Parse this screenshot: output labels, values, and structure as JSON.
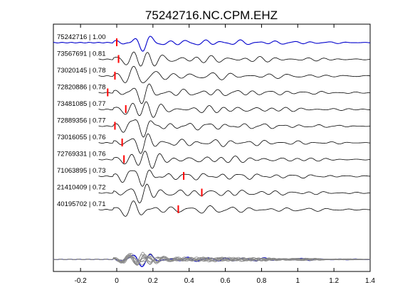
{
  "chart_data": {
    "type": "line",
    "title": "75242716.NC.CPM.EHZ",
    "xlabel": "",
    "ylabel": "",
    "xlim": [
      -0.35,
      1.4
    ],
    "xticks": [
      -0.2,
      0,
      0.2,
      0.4,
      0.6,
      0.8,
      1,
      1.2,
      1.4
    ],
    "xtick_labels": [
      "-0.2",
      "0",
      "0.2",
      "0.4",
      "0.6",
      "0.8",
      "1",
      "1.2",
      "1.4"
    ],
    "grid": false,
    "legend": "none",
    "colors": {
      "reference_trace": "#0000cc",
      "traces": "#000000",
      "picks": "#ff0000",
      "stack_overlay": "#888888"
    },
    "series": [
      {
        "name": "75242716 | 1.00",
        "correlation": 1.0,
        "pick_time": 0.0,
        "reference": true
      },
      {
        "name": "73567691 | 0.81",
        "correlation": 0.81,
        "pick_time": 0.01
      },
      {
        "name": "73020145 | 0.78",
        "correlation": 0.78,
        "pick_time": -0.01
      },
      {
        "name": "72820886 | 0.78",
        "correlation": 0.78,
        "pick_time": -0.05
      },
      {
        "name": "73481085 | 0.77",
        "correlation": 0.77,
        "pick_time": 0.05
      },
      {
        "name": "72889356 | 0.77",
        "correlation": 0.77,
        "pick_time": -0.01
      },
      {
        "name": "73016055 | 0.76",
        "correlation": 0.76,
        "pick_time": 0.03
      },
      {
        "name": "72769331 | 0.76",
        "correlation": 0.76,
        "pick_time": 0.04
      },
      {
        "name": "71063895 | 0.73",
        "correlation": 0.73,
        "pick_time": 0.37
      },
      {
        "name": "21410409 | 0.72",
        "correlation": 0.72,
        "pick_time": 0.47
      },
      {
        "name": "40195702 | 0.71",
        "correlation": 0.71,
        "pick_time": 0.34
      }
    ],
    "bottom_panel": "overlay of all aligned traces with reference trace highlighted"
  }
}
